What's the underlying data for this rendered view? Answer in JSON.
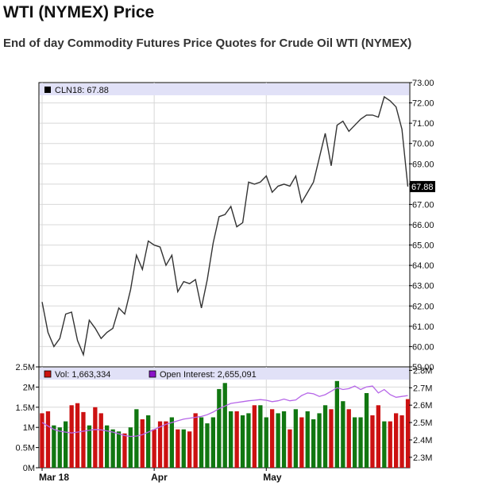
{
  "page": {
    "title": "WTI (NYMEX) Price",
    "subtitle": "End of day Commodity Futures Price Quotes for Crude Oil WTI (NYMEX)"
  },
  "chart_data": [
    {
      "type": "line",
      "legend_label": "CLN18: 67.88",
      "legend_position": "top-left",
      "last_value_label": "67.88",
      "y_ticks": [
        "73.00",
        "72.00",
        "71.00",
        "70.00",
        "69.00",
        "68.00",
        "67.00",
        "66.00",
        "65.00",
        "64.00",
        "63.00",
        "62.00",
        "61.00",
        "60.00",
        "59.00"
      ],
      "ylim": [
        59,
        73
      ],
      "grid": true,
      "x_ticks": [
        {
          "label": "Mar 18",
          "index": 0
        },
        {
          "label": "Apr",
          "index": 19
        },
        {
          "label": "May",
          "index": 38
        }
      ],
      "series": [
        {
          "name": "CLN18",
          "color": "#333333",
          "values": [
            62.2,
            60.7,
            60.0,
            60.4,
            61.6,
            61.7,
            60.3,
            59.6,
            61.3,
            60.9,
            60.4,
            60.7,
            60.9,
            61.9,
            61.6,
            62.8,
            64.5,
            63.8,
            65.2,
            65.0,
            64.9,
            64.0,
            64.5,
            62.7,
            63.2,
            63.1,
            63.3,
            61.9,
            63.3,
            65.1,
            66.4,
            66.5,
            66.9,
            65.9,
            66.1,
            68.1,
            68.0,
            68.1,
            68.4,
            67.6,
            67.9,
            68.0,
            67.9,
            68.4,
            67.1,
            67.6,
            68.1,
            69.3,
            70.5,
            68.9,
            70.9,
            71.1,
            70.6,
            70.9,
            71.2,
            71.4,
            71.4,
            71.3,
            72.3,
            72.1,
            71.8,
            70.7,
            67.88
          ]
        }
      ]
    },
    {
      "type": "bar",
      "legend": [
        {
          "label": "Vol: 1,663,334",
          "color": "#cc1111"
        },
        {
          "label": "Open Interest: 2,655,091",
          "color": "#8a12c8"
        }
      ],
      "legend_position": "top-left",
      "y_ticks_left": [
        "2.5M",
        "2M",
        "1.5M",
        "1M",
        "0.5M",
        "0M"
      ],
      "ylim_left": [
        0,
        2500000
      ],
      "y_ticks_right": [
        "2.8M",
        "2.7M",
        "2.6M",
        "2.5M",
        "2.4M",
        "2.3M"
      ],
      "ylim_right": [
        2240000,
        2820000
      ],
      "up_color": "#117711",
      "down_color": "#cc1111",
      "grid": true,
      "series": [
        {
          "name": "Vol",
          "values": [
            1350000,
            1400000,
            1050000,
            1000000,
            1150000,
            1550000,
            1600000,
            1380000,
            1050000,
            1500000,
            1350000,
            1050000,
            950000,
            900000,
            850000,
            1000000,
            1450000,
            1200000,
            1300000,
            950000,
            1150000,
            1150000,
            1250000,
            950000,
            950000,
            900000,
            1350000,
            1250000,
            1100000,
            1250000,
            1950000,
            2100000,
            1400000,
            1400000,
            1300000,
            1350000,
            1550000,
            1550000,
            1250000,
            1450000,
            1350000,
            1400000,
            950000,
            1450000,
            1250000,
            1400000,
            1200000,
            1350000,
            1550000,
            1450000,
            2150000,
            1650000,
            1450000,
            1250000,
            1250000,
            1850000,
            1300000,
            1550000,
            1150000,
            1150000,
            1350000,
            1300000,
            1700000
          ],
          "up": [
            false,
            false,
            true,
            true,
            true,
            false,
            false,
            false,
            true,
            false,
            false,
            true,
            true,
            true,
            false,
            true,
            true,
            false,
            true,
            false,
            false,
            false,
            true,
            false,
            true,
            false,
            false,
            true,
            true,
            true,
            true,
            true,
            true,
            false,
            true,
            true,
            false,
            true,
            true,
            false,
            true,
            true,
            false,
            true,
            false,
            true,
            true,
            true,
            true,
            false,
            true,
            true,
            false,
            true,
            true,
            true,
            false,
            false,
            true,
            false,
            false,
            false,
            false
          ]
        },
        {
          "name": "Open Interest",
          "values": [
            2500000,
            2480000,
            2460000,
            2450000,
            2445000,
            2440000,
            2445000,
            2450000,
            2455000,
            2460000,
            2458000,
            2452000,
            2445000,
            2435000,
            2425000,
            2420000,
            2422000,
            2430000,
            2445000,
            2460000,
            2475000,
            2490000,
            2500000,
            2510000,
            2520000,
            2525000,
            2530000,
            2535000,
            2545000,
            2560000,
            2580000,
            2595000,
            2610000,
            2615000,
            2620000,
            2625000,
            2628000,
            2632000,
            2628000,
            2620000,
            2625000,
            2635000,
            2625000,
            2630000,
            2655000,
            2670000,
            2665000,
            2650000,
            2660000,
            2680000,
            2700000,
            2690000,
            2695000,
            2710000,
            2690000,
            2705000,
            2710000,
            2670000,
            2690000,
            2660000,
            2645000,
            2650000,
            2655000
          ]
        }
      ]
    }
  ]
}
